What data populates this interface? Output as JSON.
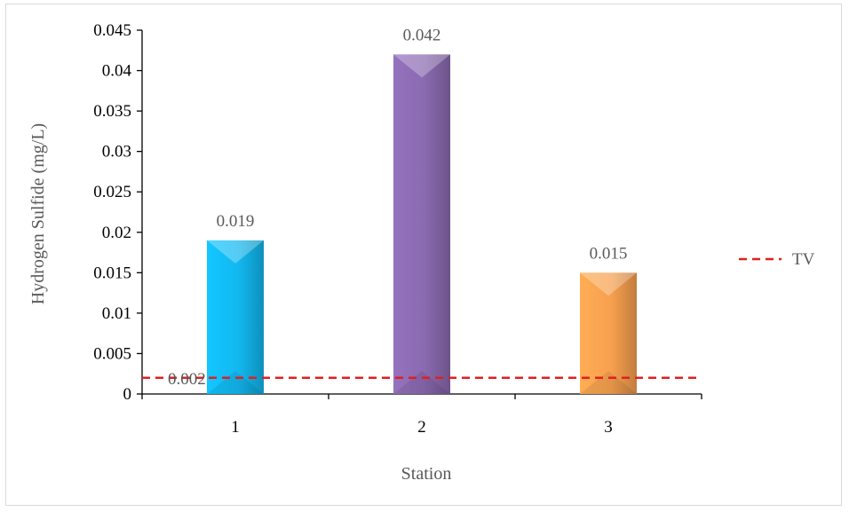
{
  "chart_data": {
    "type": "bar",
    "categories": [
      "1",
      "2",
      "3"
    ],
    "values": [
      0.019,
      0.042,
      0.015
    ],
    "data_labels": [
      "0.019",
      "0.042",
      "0.015"
    ],
    "xlabel": "Station",
    "ylabel": "Hydrogen Sulfide (mg/L)",
    "ylim": [
      0,
      0.045
    ],
    "yticks": [
      0,
      0.005,
      0.01,
      0.015,
      0.02,
      0.025,
      0.03,
      0.035,
      0.04,
      0.045
    ],
    "ytick_labels": [
      "0",
      "0.005",
      "0.01",
      "0.015",
      "0.02",
      "0.025",
      "0.03",
      "0.035",
      "0.04",
      "0.045"
    ],
    "bar_colors": [
      "#12b8f0",
      "#8a6ab0",
      "#f7a04f"
    ],
    "reference_line": {
      "name": "TV",
      "value": 0.002,
      "label": "0.002",
      "color": "#e02020",
      "style": "dashed"
    },
    "legend": {
      "placement": "right",
      "entries": [
        "TV"
      ]
    },
    "grid": false
  }
}
